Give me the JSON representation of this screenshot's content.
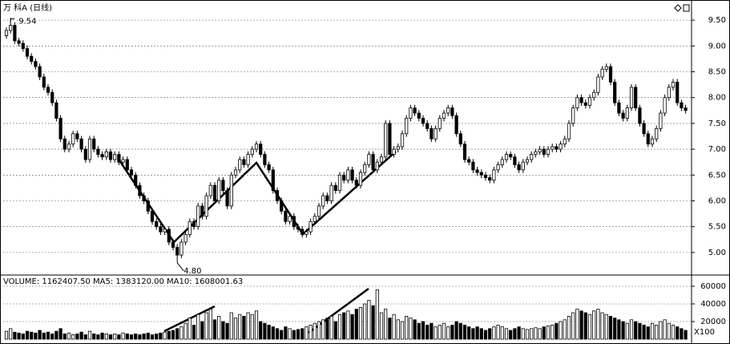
{
  "chart_data": [
    {
      "type": "candlestick",
      "title": "万 科A (日线)",
      "up_color": "#ffffff",
      "down_color": "#000000",
      "grid": true,
      "open": [
        9.2,
        9.3,
        9.4,
        9.1,
        9.05,
        8.95,
        8.8,
        8.7,
        8.6,
        8.4,
        8.2,
        8.1,
        7.9,
        7.6,
        7.2,
        7.0,
        7.1,
        7.3,
        7.2,
        7.0,
        6.8,
        7.2,
        7.0,
        6.9,
        6.85,
        6.95,
        6.8,
        6.9,
        6.75,
        6.8,
        6.6,
        6.5,
        6.3,
        6.1,
        6.0,
        5.8,
        5.6,
        5.5,
        5.4,
        5.45,
        5.2,
        5.1,
        4.95,
        5.2,
        5.35,
        5.6,
        5.5,
        5.9,
        5.7,
        6.1,
        6.3,
        6.0,
        6.4,
        6.2,
        5.9,
        6.5,
        6.6,
        6.8,
        6.7,
        6.9,
        7.0,
        7.1,
        6.9,
        6.7,
        6.6,
        6.2,
        6.0,
        5.8,
        5.6,
        5.7,
        5.5,
        5.45,
        5.35,
        5.4,
        5.6,
        5.7,
        5.9,
        6.1,
        6.0,
        6.3,
        6.2,
        6.5,
        6.4,
        6.6,
        6.4,
        6.3,
        6.55,
        6.7,
        6.9,
        6.6,
        6.75,
        6.85,
        7.5,
        6.9,
        7.0,
        7.05,
        7.3,
        7.6,
        7.8,
        7.7,
        7.6,
        7.5,
        7.4,
        7.2,
        7.4,
        7.6,
        7.7,
        7.8,
        7.65,
        7.3,
        7.1,
        6.8,
        6.75,
        6.6,
        6.55,
        6.5,
        6.45,
        6.4,
        6.6,
        6.7,
        6.8,
        6.9,
        6.85,
        6.7,
        6.6,
        6.75,
        6.8,
        6.9,
        6.95,
        7.0,
        6.9,
        7.0,
        7.05,
        7.0,
        7.1,
        7.2,
        7.5,
        7.8,
        8.0,
        7.9,
        7.85,
        8.0,
        8.1,
        8.4,
        8.55,
        8.6,
        8.3,
        7.9,
        7.7,
        7.6,
        7.8,
        8.2,
        7.8,
        7.5,
        7.3,
        7.1,
        7.2,
        7.4,
        7.7,
        8.0,
        8.2,
        8.3,
        7.9,
        7.8
      ],
      "high": [
        9.36,
        9.54,
        9.46,
        9.16,
        9.11,
        9.01,
        8.86,
        8.76,
        8.66,
        8.46,
        8.26,
        8.16,
        7.96,
        7.66,
        7.26,
        7.16,
        7.36,
        7.36,
        7.26,
        7.06,
        7.26,
        7.26,
        7.06,
        6.96,
        7.01,
        7.01,
        6.96,
        6.96,
        6.86,
        6.86,
        6.66,
        6.56,
        6.36,
        6.16,
        6.06,
        5.86,
        5.66,
        5.56,
        5.51,
        5.51,
        5.26,
        5.16,
        5.26,
        5.41,
        5.66,
        5.66,
        5.96,
        5.96,
        6.16,
        6.36,
        6.36,
        6.46,
        6.46,
        6.26,
        6.56,
        6.66,
        6.86,
        6.86,
        6.96,
        7.06,
        7.16,
        7.16,
        6.96,
        6.76,
        6.66,
        6.26,
        6.06,
        5.86,
        5.76,
        5.76,
        5.56,
        5.51,
        5.46,
        5.66,
        5.76,
        5.96,
        6.16,
        6.16,
        6.36,
        6.36,
        6.56,
        6.56,
        6.66,
        6.66,
        6.46,
        6.61,
        6.76,
        6.96,
        6.96,
        6.81,
        6.91,
        7.56,
        7.56,
        7.06,
        7.11,
        7.36,
        7.66,
        7.86,
        7.86,
        7.76,
        7.66,
        7.56,
        7.46,
        7.46,
        7.66,
        7.76,
        7.86,
        7.86,
        7.71,
        7.36,
        7.16,
        6.86,
        6.81,
        6.66,
        6.61,
        6.56,
        6.51,
        6.66,
        6.76,
        6.86,
        6.96,
        6.96,
        6.91,
        6.76,
        6.81,
        6.86,
        6.96,
        7.01,
        7.06,
        7.06,
        7.06,
        7.11,
        7.11,
        7.16,
        7.26,
        7.56,
        7.86,
        8.06,
        8.06,
        7.96,
        8.06,
        8.16,
        8.46,
        8.61,
        8.66,
        8.66,
        8.36,
        7.96,
        7.76,
        7.86,
        8.26,
        8.26,
        7.86,
        7.56,
        7.36,
        7.26,
        7.46,
        7.76,
        8.06,
        8.26,
        8.36,
        8.36,
        7.96,
        7.86
      ],
      "low": [
        9.14,
        9.24,
        9.04,
        8.99,
        8.89,
        8.74,
        8.64,
        8.54,
        8.34,
        8.14,
        8.04,
        7.84,
        7.54,
        7.14,
        6.94,
        6.94,
        7.04,
        7.14,
        6.94,
        6.74,
        6.74,
        6.94,
        6.84,
        6.79,
        6.79,
        6.74,
        6.74,
        6.69,
        6.69,
        6.54,
        6.44,
        6.24,
        6.04,
        5.94,
        5.74,
        5.54,
        5.44,
        5.34,
        5.34,
        5.14,
        5.04,
        4.8,
        4.89,
        5.14,
        5.29,
        5.44,
        5.44,
        5.64,
        5.64,
        6.04,
        5.94,
        5.94,
        6.14,
        5.84,
        5.84,
        6.44,
        6.54,
        6.64,
        6.64,
        6.84,
        6.94,
        6.84,
        6.64,
        6.54,
        6.14,
        5.94,
        5.74,
        5.54,
        5.54,
        5.44,
        5.39,
        5.29,
        5.29,
        5.34,
        5.54,
        5.64,
        5.84,
        5.94,
        5.94,
        6.14,
        6.14,
        6.34,
        6.34,
        6.34,
        6.24,
        6.24,
        6.49,
        6.64,
        6.54,
        6.54,
        6.69,
        6.79,
        6.84,
        6.84,
        6.94,
        6.99,
        7.24,
        7.54,
        7.64,
        7.54,
        7.44,
        7.34,
        7.14,
        7.14,
        7.34,
        7.54,
        7.64,
        7.59,
        7.24,
        7.04,
        6.74,
        6.69,
        6.54,
        6.49,
        6.44,
        6.39,
        6.34,
        6.34,
        6.54,
        6.64,
        6.74,
        6.79,
        6.64,
        6.54,
        6.54,
        6.69,
        6.74,
        6.84,
        6.89,
        6.84,
        6.84,
        6.94,
        6.94,
        6.94,
        7.04,
        7.14,
        7.44,
        7.74,
        7.84,
        7.79,
        7.79,
        7.94,
        8.04,
        8.34,
        8.49,
        8.24,
        7.84,
        7.64,
        7.54,
        7.54,
        7.74,
        7.74,
        7.44,
        7.24,
        7.04,
        7.04,
        7.14,
        7.34,
        7.64,
        7.94,
        8.14,
        7.84,
        7.74,
        7.69
      ],
      "close": [
        9.3,
        9.4,
        9.1,
        9.05,
        8.95,
        8.8,
        8.7,
        8.6,
        8.4,
        8.2,
        8.1,
        7.9,
        7.6,
        7.2,
        7.0,
        7.1,
        7.3,
        7.2,
        7.0,
        6.8,
        7.2,
        7.0,
        6.9,
        6.85,
        6.95,
        6.8,
        6.9,
        6.75,
        6.8,
        6.6,
        6.5,
        6.3,
        6.1,
        6.0,
        5.8,
        5.6,
        5.5,
        5.4,
        5.45,
        5.2,
        5.1,
        4.95,
        5.2,
        5.35,
        5.6,
        5.5,
        5.9,
        5.7,
        6.1,
        6.3,
        6.0,
        6.4,
        6.2,
        5.9,
        6.5,
        6.6,
        6.8,
        6.7,
        6.9,
        7.0,
        7.1,
        6.9,
        6.7,
        6.6,
        6.2,
        6.0,
        5.8,
        5.6,
        5.7,
        5.5,
        5.45,
        5.35,
        5.4,
        5.6,
        5.7,
        5.9,
        6.1,
        6.0,
        6.3,
        6.2,
        6.5,
        6.4,
        6.6,
        6.4,
        6.3,
        6.55,
        6.7,
        6.9,
        6.6,
        6.75,
        6.85,
        7.5,
        6.9,
        7.0,
        7.05,
        7.3,
        7.6,
        7.8,
        7.7,
        7.6,
        7.5,
        7.4,
        7.2,
        7.4,
        7.6,
        7.7,
        7.8,
        7.65,
        7.3,
        7.1,
        6.8,
        6.75,
        6.6,
        6.55,
        6.5,
        6.45,
        6.4,
        6.6,
        6.7,
        6.8,
        6.9,
        6.85,
        6.7,
        6.6,
        6.75,
        6.8,
        6.9,
        6.95,
        7.0,
        6.9,
        7.0,
        7.05,
        7.0,
        7.1,
        7.2,
        7.5,
        7.8,
        8.0,
        7.9,
        7.85,
        8.0,
        8.1,
        8.4,
        8.55,
        8.6,
        8.3,
        7.9,
        7.7,
        7.6,
        7.8,
        8.2,
        7.8,
        7.5,
        7.3,
        7.1,
        7.2,
        7.4,
        7.7,
        8.0,
        8.2,
        8.3,
        7.9,
        7.8,
        7.75
      ],
      "ylim": [
        4.61,
        9.89
      ],
      "yticks": [
        {
          "value": 5,
          "label": "5.00"
        },
        {
          "value": 5.5,
          "label": "5.50"
        },
        {
          "value": 6,
          "label": "6.00"
        },
        {
          "value": 6.5,
          "label": "6.50"
        },
        {
          "value": 7,
          "label": "7.00"
        },
        {
          "value": 7.5,
          "label": "7.50"
        },
        {
          "value": 8,
          "label": "8.00"
        },
        {
          "value": 8.5,
          "label": "8.50"
        },
        {
          "value": 9,
          "label": "9.00"
        },
        {
          "value": 9.5,
          "label": "9.50"
        }
      ],
      "annotations": [
        "9.54",
        "4.80"
      ]
    },
    {
      "type": "bar",
      "title": "VOLUME: 1162407.50 MA5: 1383120.00 MA10: 1608001.63",
      "unit": "X100",
      "grid": true,
      "values": [
        9000,
        12000,
        8000,
        7000,
        6000,
        9000,
        8000,
        7000,
        10000,
        7000,
        8000,
        6000,
        9000,
        12000,
        6000,
        7000,
        5000,
        6000,
        8000,
        5000,
        9000,
        6000,
        5000,
        7000,
        6000,
        5000,
        6000,
        5000,
        7000,
        6000,
        5000,
        6000,
        5000,
        6000,
        7000,
        5000,
        6000,
        7000,
        8000,
        9000,
        10000,
        12000,
        14000,
        18000,
        24000,
        16000,
        28000,
        20000,
        30000,
        34000,
        22000,
        26000,
        20000,
        18000,
        30000,
        24000,
        28000,
        26000,
        30000,
        28000,
        32000,
        20000,
        18000,
        16000,
        14000,
        12000,
        10000,
        14000,
        12000,
        10000,
        11000,
        12000,
        14000,
        16000,
        18000,
        20000,
        22000,
        24000,
        26000,
        20000,
        28000,
        30000,
        32000,
        28000,
        34000,
        36000,
        40000,
        44000,
        38000,
        56000,
        30000,
        34000,
        24000,
        28000,
        22000,
        20000,
        26000,
        24000,
        22000,
        18000,
        20000,
        16000,
        18000,
        14000,
        16000,
        18000,
        14000,
        16000,
        20000,
        18000,
        16000,
        14000,
        12000,
        14000,
        12000,
        10000,
        12000,
        14000,
        16000,
        14000,
        12000,
        10000,
        12000,
        14000,
        12000,
        11000,
        12000,
        13000,
        12000,
        14000,
        15000,
        16000,
        18000,
        20000,
        22000,
        26000,
        30000,
        34000,
        32000,
        30000,
        28000,
        32000,
        34000,
        30000,
        28000,
        26000,
        24000,
        22000,
        20000,
        18000,
        22000,
        20000,
        18000,
        16000,
        14000,
        18000,
        16000,
        20000,
        22000,
        18000,
        16000,
        14000,
        12000,
        10000
      ],
      "ylim": [
        0,
        70000
      ],
      "yticks": [
        20000,
        40000,
        60000
      ]
    }
  ]
}
